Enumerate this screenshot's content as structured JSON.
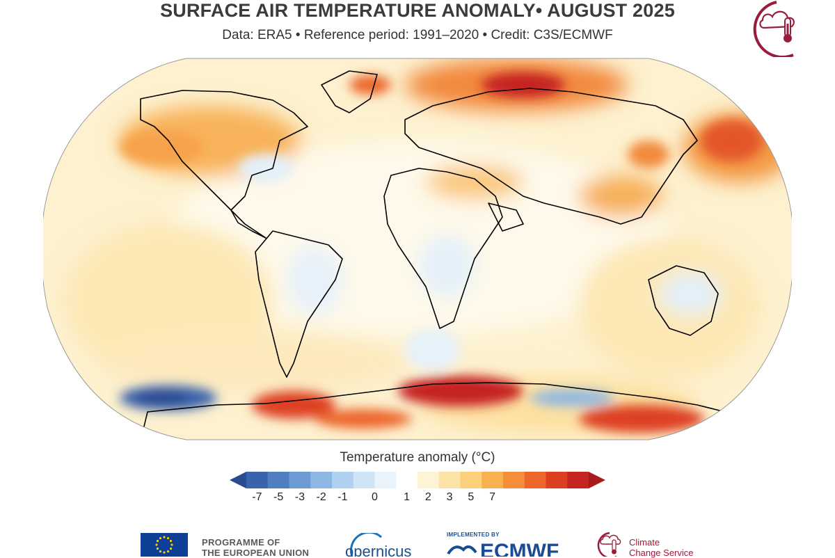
{
  "header": {
    "title": "SURFACE AIR TEMPERATURE ANOMALY• AUGUST 2025",
    "subtitle": "Data: ERA5 • Reference period: 1991–2020 • Credit: C3S/ECMWF"
  },
  "map": {
    "projection": "Robinson",
    "variable": "surface air temperature anomaly"
  },
  "legend": {
    "title": "Temperature anomaly (°C)",
    "ticks": [
      "-7",
      "-5",
      "-3",
      "-2",
      "-1",
      "0",
      "1",
      "2",
      "3",
      "5",
      "7"
    ],
    "colors": [
      "#2a4a8f",
      "#3a63ad",
      "#4f7fc0",
      "#6b9bd2",
      "#8db7e3",
      "#afd0ee",
      "#cfe4f6",
      "#e9f3fb",
      "#ffffff",
      "#fff3d6",
      "#fde4a6",
      "#fcd07a",
      "#f9b150",
      "#f58d3a",
      "#ec652b",
      "#dd4021",
      "#c52420",
      "#a81a1c"
    ]
  },
  "footer": {
    "eu_line1": "PROGRAMME OF",
    "eu_line2": "THE EUROPEAN UNION",
    "copernicus_label": "opernicus",
    "ecmwf_implemented": "IMPLEMENTED BY",
    "ecmwf_label": "ECMWF",
    "c3s_line1": "Climate",
    "c3s_line2": "Change Service"
  },
  "colors": {
    "brand_c3s": "#9b1b3a",
    "ecmwf_blue": "#1a4c96",
    "eu_blue": "#0c3f95",
    "eu_star": "#ffcc00"
  }
}
